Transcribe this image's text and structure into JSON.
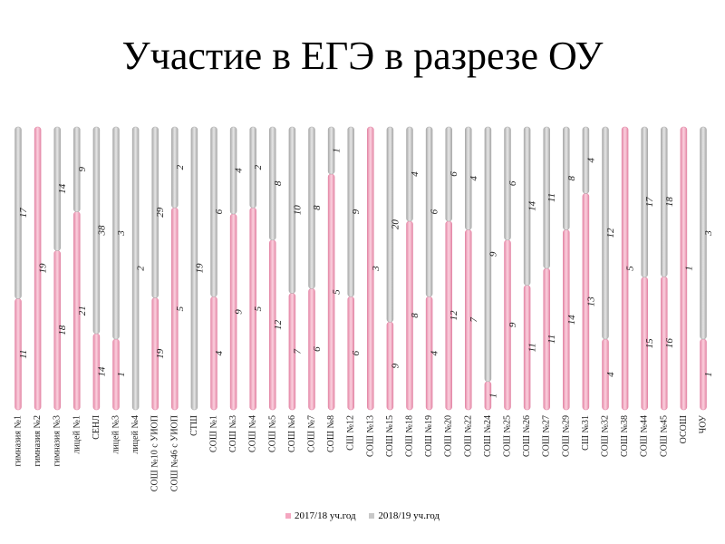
{
  "title": "Участие в ЕГЭ в разрезе ОУ",
  "colors": {
    "series1": "#f4a6c0",
    "series2": "#c8c8c8",
    "series1_edge": "#e07fa0",
    "series2_edge": "#a8a8a8"
  },
  "chart_data": {
    "type": "bar",
    "stacking": "percent",
    "categories": [
      "гимназия №1",
      "гимназия №2",
      "гимназия №3",
      "лицей №1",
      "СЕНЛ",
      "лицей №3",
      "лицей №4",
      "СОШ №10 с УИОП",
      "СОШ №46 с УИОП",
      "СТШ",
      "СОШ №1",
      "СОШ №3",
      "СОШ №4",
      "СОШ №5",
      "СОШ №6",
      "СОШ №7",
      "СОШ №8",
      "СШ №12",
      "СОШ №13",
      "СОШ №15",
      "СОШ №18",
      "СОШ №19",
      "СОШ №20",
      "СОШ №22",
      "СОШ №24",
      "СОШ №25",
      "СОШ №26",
      "СОШ №27",
      "СОШ №29",
      "СШ №31",
      "СОШ №32",
      "СОШ №38",
      "СОШ №44",
      "СОШ №45",
      "ОСОШ",
      "ЧОУ"
    ],
    "series": [
      {
        "name": "2017/18 уч.год",
        "values": [
          11,
          19,
          18,
          21,
          14,
          1,
          0,
          19,
          5,
          0,
          4,
          9,
          5,
          12,
          7,
          6,
          5,
          6,
          3,
          9,
          8,
          4,
          12,
          7,
          1,
          9,
          11,
          11,
          14,
          13,
          4,
          5,
          15,
          16,
          1,
          1
        ]
      },
      {
        "name": "2018/19 уч.год",
        "values": [
          17,
          0,
          14,
          9,
          38,
          3,
          2,
          29,
          2,
          19,
          6,
          4,
          2,
          8,
          10,
          8,
          1,
          9,
          0,
          20,
          4,
          6,
          6,
          4,
          9,
          6,
          14,
          11,
          8,
          4,
          12,
          0,
          17,
          18,
          0,
          3
        ]
      }
    ],
    "legend_position": "bottom",
    "grid": false
  }
}
